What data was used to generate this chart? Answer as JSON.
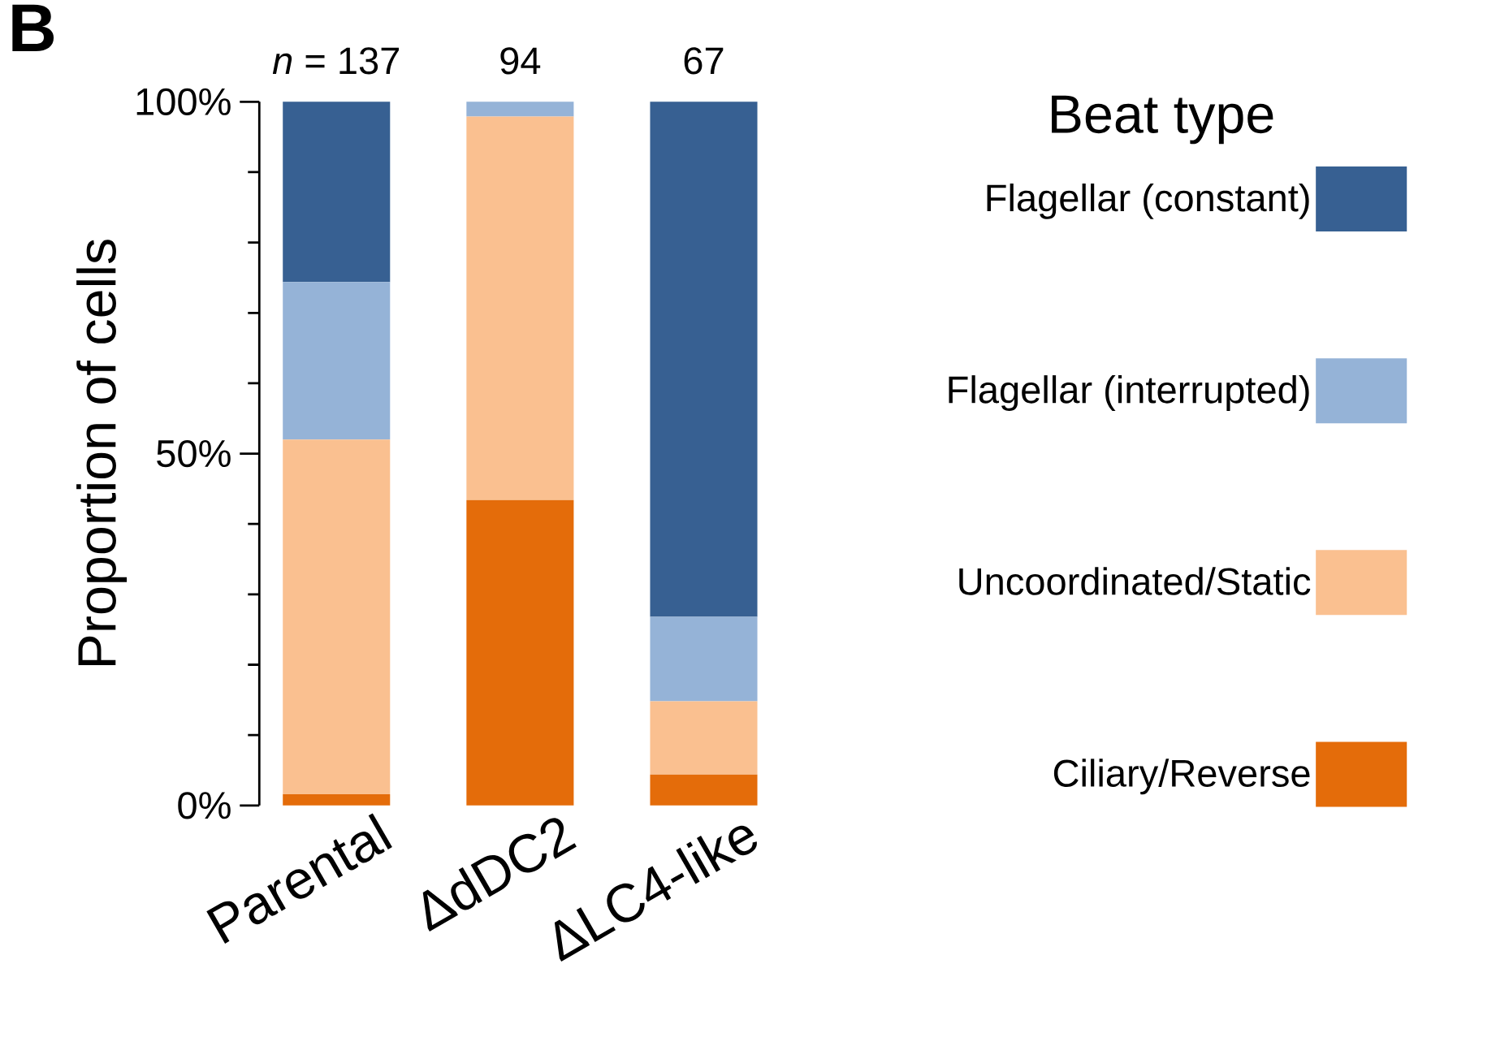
{
  "chart_data": {
    "type": "bar",
    "stacked": true,
    "title": "B",
    "ylabel": "Proportion of cells",
    "legend_title": "Beat type",
    "legend": "right",
    "categories": [
      "Parental",
      "ΔdDC2",
      "ΔLC4-like"
    ],
    "series": [
      {
        "name": "Ciliary/Reverse",
        "color": "#e46c0a",
        "values": [
          1.6,
          43.4,
          4.4
        ]
      },
      {
        "name": "Uncoordinated/Static",
        "color": "#fac090",
        "values": [
          50.4,
          54.5,
          10.4
        ]
      },
      {
        "name": "Flagellar (interrupted)",
        "color": "#95b3d7",
        "values": [
          22.4,
          2.1,
          12.0
        ]
      },
      {
        "name": "Flagellar (constant)",
        "color": "#376092",
        "values": [
          25.6,
          0,
          73.2
        ]
      }
    ],
    "ylim": [
      0,
      100
    ],
    "yticks": [
      {
        "value": 0,
        "label": "0%"
      },
      {
        "value": 50,
        "label": "50%"
      },
      {
        "value": 100,
        "label": "100%"
      }
    ],
    "annotations": [
      "*n* = 137",
      "94",
      "67"
    ]
  }
}
